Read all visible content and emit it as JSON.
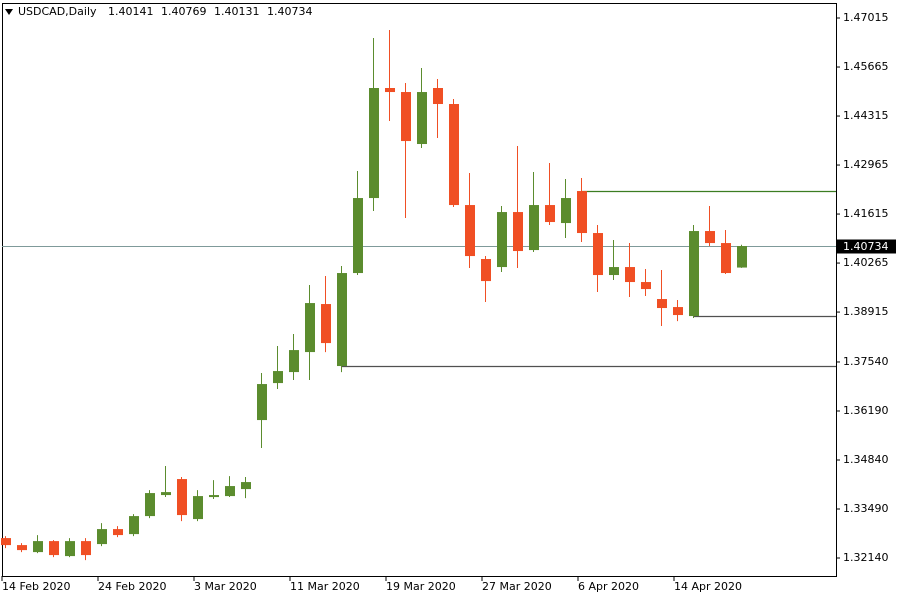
{
  "chart_data": {
    "type": "candlestick",
    "title": "USDCAD,Daily",
    "categories": [
      "14 Feb 2020",
      null,
      null,
      null,
      null,
      null,
      "24 Feb 2020",
      null,
      null,
      null,
      null,
      null,
      "3 Mar 2020",
      null,
      null,
      null,
      null,
      null,
      "11 Mar 2020",
      null,
      null,
      null,
      null,
      null,
      "19 Mar 2020",
      null,
      null,
      null,
      null,
      null,
      "27 Mar 2020",
      null,
      null,
      null,
      null,
      null,
      "6 Apr 2020",
      null,
      null,
      null,
      null,
      null,
      "14 Apr 2020",
      null,
      null,
      null,
      null
    ],
    "open": [
      1.32689,
      1.32496,
      1.32303,
      1.32606,
      1.32193,
      1.32606,
      1.32524,
      1.32937,
      1.32799,
      1.33295,
      1.33874,
      1.34315,
      1.33213,
      1.33819,
      1.33846,
      1.34039,
      1.3594,
      1.36959,
      1.37262,
      1.37813,
      1.39136,
      1.37428,
      1.3999,
      1.42056,
      1.45087,
      1.44976,
      1.43544,
      1.45087,
      1.44646,
      1.41863,
      1.40376,
      1.40155,
      1.4167,
      1.40623,
      1.41863,
      1.41367,
      1.42249,
      1.41092,
      1.39935,
      1.40155,
      1.39742,
      1.39274,
      1.39053,
      1.38805,
      1.41147,
      1.40816,
      1.40141
    ],
    "high": [
      1.32744,
      1.32551,
      1.32772,
      1.32634,
      1.32689,
      1.32689,
      1.33102,
      1.3302,
      1.3335,
      1.34011,
      1.34673,
      1.3437,
      1.34011,
      1.34287,
      1.34397,
      1.3437,
      1.37235,
      1.37979,
      1.38309,
      1.39659,
      1.39907,
      1.40183,
      1.428,
      1.46464,
      1.46684,
      1.45224,
      1.45638,
      1.45335,
      1.44784,
      1.42745,
      1.40458,
      1.41836,
      1.43489,
      1.42772,
      1.4302,
      1.4258,
      1.42607,
      1.41312,
      1.40899,
      1.40816,
      1.401,
      1.40072,
      1.39246,
      1.41312,
      1.41836,
      1.41174,
      1.40769
    ],
    "low": [
      1.32414,
      1.32303,
      1.32276,
      1.32166,
      1.32166,
      1.32083,
      1.32469,
      1.32717,
      1.32744,
      1.3324,
      1.33819,
      1.33157,
      1.33157,
      1.33764,
      1.33819,
      1.33791,
      1.35169,
      1.36794,
      1.37042,
      1.37042,
      1.37813,
      1.37262,
      1.39935,
      1.41698,
      1.44177,
      1.41505,
      1.43434,
      1.43709,
      1.41808,
      1.40128,
      1.39191,
      1.40017,
      1.40128,
      1.40568,
      1.41312,
      1.40954,
      1.40844,
      1.39466,
      1.39797,
      1.39329,
      1.39356,
      1.3853,
      1.38667,
      1.3875,
      1.40734,
      1.39962,
      1.40131
    ],
    "close": [
      1.32496,
      1.32358,
      1.32606,
      1.32221,
      1.32606,
      1.32221,
      1.32937,
      1.32772,
      1.33295,
      1.33929,
      1.33956,
      1.33323,
      1.33846,
      1.33874,
      1.34122,
      1.34232,
      1.36932,
      1.3729,
      1.37868,
      1.39163,
      1.38061,
      1.3999,
      1.42056,
      1.45087,
      1.44976,
      1.43626,
      1.44976,
      1.44646,
      1.41863,
      1.40458,
      1.39769,
      1.4167,
      1.40596,
      1.41863,
      1.41395,
      1.42056,
      1.41092,
      1.39935,
      1.40155,
      1.39742,
      1.39549,
      1.39026,
      1.38833,
      1.41147,
      1.40816,
      1.3999,
      1.40734
    ],
    "up_color": "#5b8c2e",
    "down_color": "#f04f24",
    "price_line_color": "#7f9a9a",
    "levels": [
      {
        "value": 1.42249,
        "color": "#3c7d22"
      },
      {
        "value": 1.37428,
        "color": "#505050"
      },
      {
        "value": 1.38806,
        "color": "#505050"
      }
    ],
    "ylim": [
      1.31672,
      1.47401
    ],
    "yticks": [
      1.47015,
      1.45665,
      1.44315,
      1.42965,
      1.41615,
      1.40265,
      1.38915,
      {
        "value": 1.3754,
        "label": "1.37540"
      },
      {
        "value": 1.3619,
        "label": "1.36190"
      },
      {
        "value": 1.3484,
        "label": "1.34840"
      },
      {
        "value": 1.3349,
        "label": "1.33490"
      },
      {
        "value": 1.3214,
        "label": "1.32140"
      }
    ]
  }
}
